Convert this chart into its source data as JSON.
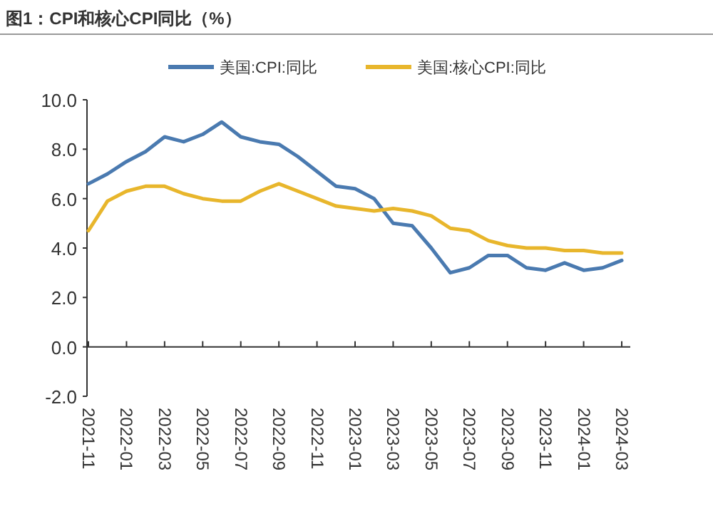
{
  "chart_data": {
    "type": "line",
    "title": "图1：CPI和核心CPI同比（%）",
    "categories": [
      "2021-11",
      null,
      "2022-01",
      null,
      "2022-03",
      null,
      "2022-05",
      null,
      "2022-07",
      null,
      "2022-09",
      null,
      "2022-11",
      null,
      "2023-01",
      null,
      "2023-03",
      null,
      "2023-05",
      null,
      "2023-07",
      null,
      "2023-09",
      null,
      "2023-11",
      null,
      "2024-01",
      null,
      "2024-03"
    ],
    "series": [
      {
        "name": "美国:CPI:同比",
        "color": "#4a7ab0",
        "values": [
          6.6,
          7.0,
          7.5,
          7.9,
          8.5,
          8.3,
          8.6,
          9.1,
          8.5,
          8.3,
          8.2,
          7.7,
          7.1,
          6.5,
          6.4,
          6.0,
          5.0,
          4.9,
          4.0,
          3.0,
          3.2,
          3.7,
          3.7,
          3.2,
          3.1,
          3.4,
          3.1,
          3.2,
          3.5
        ]
      },
      {
        "name": "美国:核心CPI:同比",
        "color": "#e8b62c",
        "values": [
          4.7,
          5.9,
          6.3,
          6.5,
          6.5,
          6.2,
          6.0,
          5.9,
          5.9,
          6.3,
          6.6,
          6.3,
          6.0,
          5.7,
          5.6,
          5.5,
          5.6,
          5.5,
          5.3,
          4.8,
          4.7,
          4.3,
          4.1,
          4.0,
          4.0,
          3.9,
          3.9,
          3.8,
          3.8
        ]
      }
    ],
    "ylim": [
      -2,
      10
    ],
    "yticks": [
      {
        "value": -2,
        "label": "-2.0"
      },
      {
        "value": 0,
        "label": "0.0"
      },
      {
        "value": 2,
        "label": "2.0"
      },
      {
        "value": 4,
        "label": "4.0"
      },
      {
        "value": 6,
        "label": "6.0"
      },
      {
        "value": 8,
        "label": "8.0"
      },
      {
        "value": 10,
        "label": "10.0"
      }
    ],
    "legend": "top",
    "marker": "none",
    "line_style": "solid"
  }
}
